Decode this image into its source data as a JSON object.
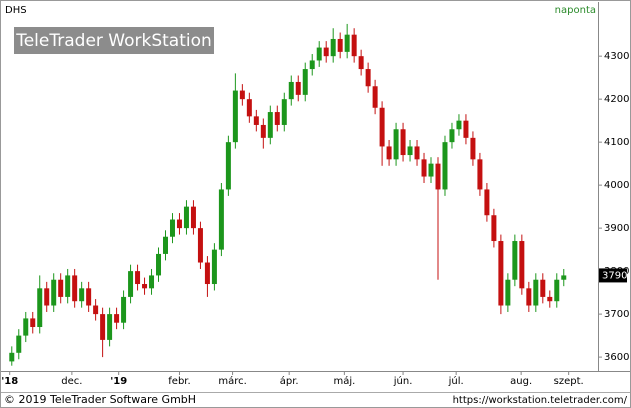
{
  "chart_data": {
    "type": "candlestick",
    "title": "DHS",
    "subtitle": "naponta",
    "watermark": "TeleTrader WorkStation",
    "footer_left": "© 2019 TeleTrader Software GmbH",
    "footer_right": "https://workstation.teletrader.com/",
    "up_color": "#1c961c",
    "down_color": "#c41010",
    "open": [
      3590,
      3610,
      3650,
      3690,
      3670,
      3760,
      3720,
      3780,
      3740,
      3790,
      3730,
      3760,
      3720,
      3700,
      3640,
      3700,
      3680,
      3740,
      3800,
      3770,
      3760,
      3790,
      3840,
      3880,
      3920,
      3900,
      3950,
      3900,
      3820,
      3770,
      3850,
      3990,
      4100,
      4220,
      4200,
      4160,
      4140,
      4110,
      4170,
      4140,
      4200,
      4240,
      4210,
      4270,
      4290,
      4320,
      4300,
      4340,
      4310,
      4350,
      4300,
      4270,
      4230,
      4180,
      4090,
      4060,
      4130,
      4070,
      4090,
      4060,
      4020,
      4050,
      3990,
      4100,
      4130,
      4150,
      4110,
      4060,
      3990,
      3930,
      3870,
      3720,
      3780,
      3870,
      3760,
      3720,
      3780,
      3740,
      3730,
      3780
    ],
    "high": [
      3625,
      3665,
      3705,
      3705,
      3790,
      3775,
      3795,
      3795,
      3805,
      3805,
      3775,
      3775,
      3735,
      3715,
      3715,
      3715,
      3755,
      3815,
      3815,
      3785,
      3805,
      3855,
      3895,
      3935,
      3935,
      3965,
      3965,
      3915,
      3835,
      3865,
      4005,
      4115,
      4260,
      4235,
      4215,
      4175,
      4155,
      4185,
      4185,
      4215,
      4255,
      4255,
      4285,
      4305,
      4335,
      4335,
      4365,
      4355,
      4375,
      4365,
      4315,
      4285,
      4245,
      4195,
      4105,
      4145,
      4145,
      4105,
      4105,
      4075,
      4065,
      4065,
      4115,
      4145,
      4165,
      4165,
      4125,
      4075,
      4005,
      3945,
      3885,
      3795,
      3885,
      3885,
      3775,
      3795,
      3795,
      3755,
      3795,
      3805
    ],
    "low": [
      3580,
      3595,
      3635,
      3655,
      3655,
      3705,
      3705,
      3725,
      3725,
      3715,
      3715,
      3705,
      3685,
      3600,
      3625,
      3665,
      3665,
      3725,
      3755,
      3745,
      3745,
      3775,
      3825,
      3865,
      3885,
      3885,
      3885,
      3805,
      3740,
      3755,
      3835,
      3975,
      4085,
      4185,
      4145,
      4125,
      4085,
      4095,
      4125,
      4125,
      4185,
      4195,
      4195,
      4255,
      4275,
      4285,
      4285,
      4295,
      4295,
      4285,
      4255,
      4215,
      4165,
      4045,
      4045,
      4045,
      4055,
      4055,
      4045,
      4005,
      4005,
      3780,
      3975,
      4085,
      4115,
      4095,
      4045,
      3975,
      3915,
      3855,
      3700,
      3705,
      3765,
      3745,
      3705,
      3705,
      3725,
      3715,
      3715,
      3765
    ],
    "close": [
      3610,
      3650,
      3690,
      3670,
      3760,
      3720,
      3780,
      3740,
      3790,
      3730,
      3760,
      3720,
      3700,
      3640,
      3700,
      3680,
      3740,
      3800,
      3770,
      3760,
      3790,
      3840,
      3880,
      3920,
      3900,
      3950,
      3900,
      3820,
      3770,
      3850,
      3990,
      4100,
      4220,
      4200,
      4160,
      4140,
      4110,
      4170,
      4140,
      4200,
      4240,
      4210,
      4270,
      4290,
      4320,
      4300,
      4340,
      4310,
      4350,
      4300,
      4270,
      4230,
      4180,
      4090,
      4060,
      4130,
      4070,
      4090,
      4060,
      4020,
      4050,
      3990,
      4100,
      4130,
      4150,
      4110,
      4060,
      3990,
      3930,
      3870,
      3720,
      3780,
      3870,
      3760,
      3720,
      3780,
      3740,
      3730,
      3780,
      3790
    ],
    "ylim": [
      3570,
      4426
    ],
    "yticks": [
      3600,
      3700,
      3800,
      3900,
      4000,
      4100,
      4200,
      4300
    ],
    "xlim": [
      -1.4,
      83.9
    ],
    "xticks": [
      {
        "value": -0.3,
        "label": "'18"
      },
      {
        "value": 8.6,
        "label": "dec."
      },
      {
        "value": 15.3,
        "label": "'19"
      },
      {
        "value": 24,
        "label": "febr."
      },
      {
        "value": 31.6,
        "label": "márc."
      },
      {
        "value": 39.7,
        "label": "ápr."
      },
      {
        "value": 47.6,
        "label": "máj."
      },
      {
        "value": 56,
        "label": "jún."
      },
      {
        "value": 63.6,
        "label": "júl."
      },
      {
        "value": 72.9,
        "label": "aug."
      },
      {
        "value": 79.7,
        "label": "szept."
      }
    ],
    "grid": false
  }
}
